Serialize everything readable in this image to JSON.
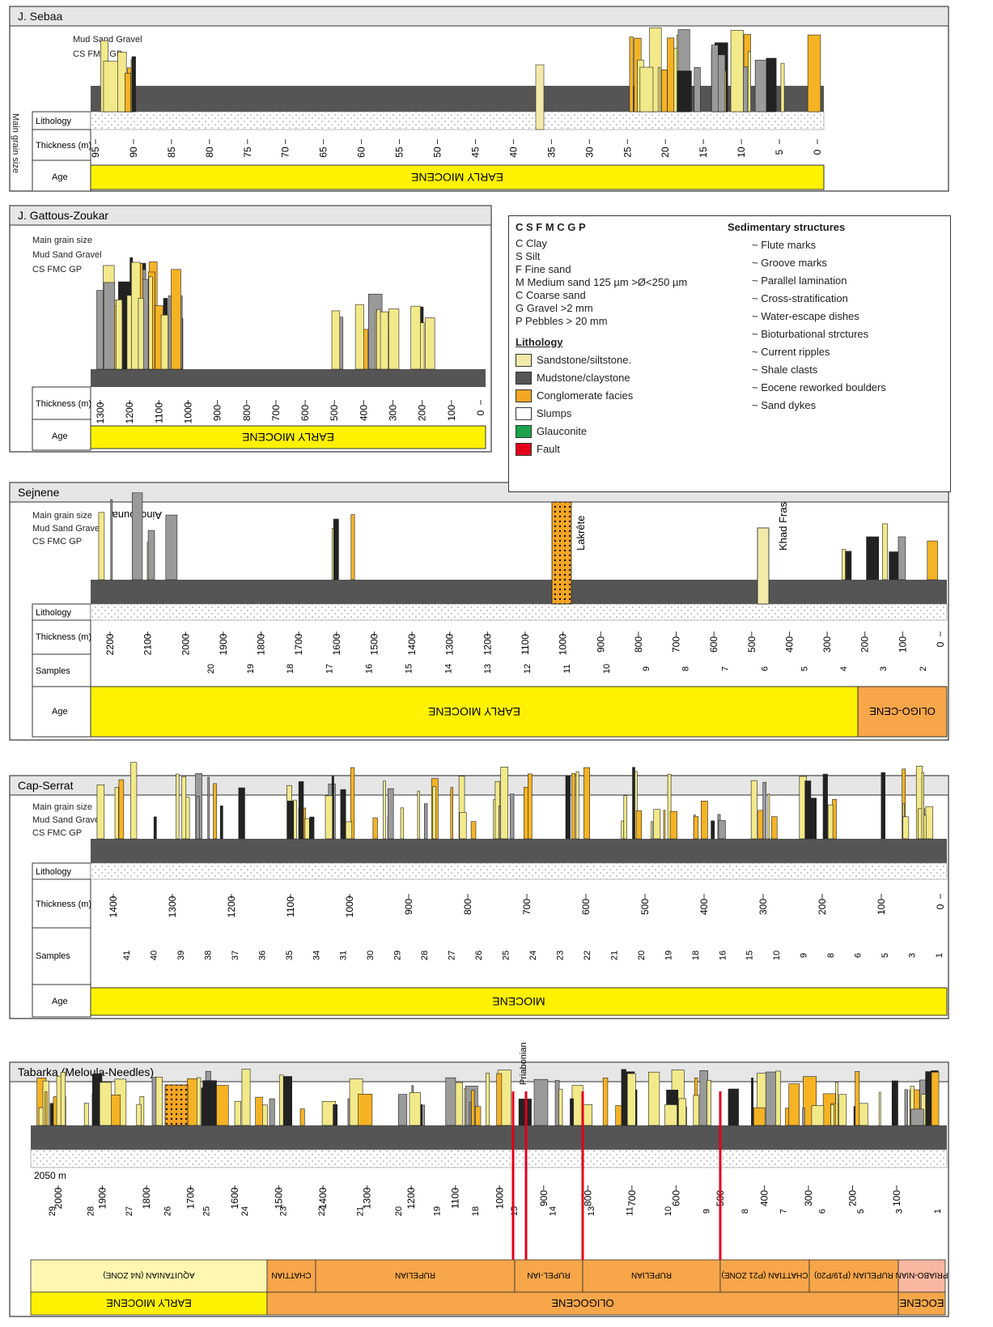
{
  "columns": {
    "sebaa": {
      "title": "J. Sebaa",
      "age_header": "Age",
      "thickness_header": "Thickness (m)",
      "lithology_header": "Lithology",
      "grain_header": "Main grain size",
      "grain_sub": "Mud Sand Gravel",
      "grain_codes": "CS FMC GP",
      "age_band": "EARLY MIOCENE",
      "ticks": [
        "95",
        "90",
        "85",
        "80",
        "75",
        "70",
        "65",
        "60",
        "55",
        "50",
        "45",
        "40",
        "35",
        "30",
        "25",
        "20",
        "15",
        "10",
        "5",
        "0"
      ]
    },
    "gattous": {
      "title": "J. Gattous-Zoukar",
      "age_header": "Age",
      "thickness_header": "Thickness (m)",
      "grain_header": "Main grain size",
      "grain_sub": "Mud Sand Gravel",
      "grain_codes": "CS FMC GP",
      "age_band": "EARLY MIOCENE",
      "ticks": [
        "1300",
        "1200",
        "1100",
        "1000",
        "900",
        "800",
        "700",
        "600",
        "500",
        "400",
        "300",
        "200",
        "100",
        "0"
      ]
    },
    "sejnene": {
      "title": "Sejnene",
      "age_header": "Age",
      "samples_header": "Samples",
      "thickness_header": "Thickness (m)",
      "lithology_header": "Lithology",
      "grain_header": "Main grain size",
      "grain_sub": "Mud Sand Gravel",
      "grain_codes": "CS FMC GP",
      "age_band": "EARLY MIOCENE",
      "age_band2": "OLIGO-CENE",
      "labels": {
        "ainchouna": "Ainchouna",
        "lakrete": "Lakrête",
        "khad": "Khad Fras"
      },
      "ticks": [
        "2200",
        "2100",
        "2000",
        "1900",
        "1800",
        "1700",
        "1600",
        "1500",
        "1400",
        "1300",
        "1200",
        "1100",
        "1000",
        "900",
        "800",
        "700",
        "600",
        "500",
        "400",
        "300",
        "200",
        "100",
        "0"
      ],
      "samples": [
        "20",
        "19",
        "18",
        "17",
        "16",
        "15",
        "14",
        "13",
        "12",
        "11",
        "10",
        "9",
        "8",
        "7",
        "6",
        "5",
        "4",
        "3",
        "2"
      ]
    },
    "capserrat": {
      "title": "Cap-Serrat",
      "age_header": "Age",
      "samples_header": "Samples",
      "thickness_header": "Thickness (m)",
      "lithology_header": "Lithology",
      "grain_header": "Main grain size",
      "grain_sub": "Mud Sand Gravel",
      "grain_codes": "CS FMC GP",
      "age_band": "MIOCENE",
      "ticks": [
        "1400",
        "1300",
        "1200",
        "1100",
        "1000",
        "900",
        "800",
        "700",
        "600",
        "500",
        "400",
        "300",
        "200",
        "100",
        "0"
      ],
      "samples": [
        "41",
        "40",
        "39",
        "38",
        "37",
        "36",
        "35",
        "34",
        "31",
        "30",
        "29",
        "28",
        "27",
        "26",
        "25",
        "24",
        "23",
        "22",
        "21",
        "20",
        "19",
        "18",
        "16",
        "15",
        "10",
        "9",
        "8",
        "6",
        "5",
        "3",
        "1"
      ]
    },
    "tabarka": {
      "title": "Tabarka (Meloula-Needles)",
      "top_tick": "2050 m",
      "ticks": [
        "2000",
        "1900",
        "1800",
        "1700",
        "1600",
        "1500",
        "1400",
        "1300",
        "1200",
        "1100",
        "1000",
        "900",
        "800",
        "700",
        "600",
        "500",
        "400",
        "300",
        "200",
        "100"
      ],
      "samples": [
        "29",
        "28",
        "27",
        "26",
        "25",
        "24",
        "23",
        "22",
        "21",
        "20",
        "19",
        "18",
        "15",
        "14",
        "13",
        "11",
        "10",
        "9",
        "8",
        "7",
        "6",
        "5",
        "3",
        "1"
      ],
      "priabonian_label": "Priabonian",
      "stages": [
        "AQUITANIAN (N4 ZONE)",
        "CHATTIAN",
        "RUPELIAN",
        "RUPEL-IAN",
        "RUPELIAN",
        "CHATTIAN (P21 ZONE)",
        "RUPELIAN (P19/P20)",
        "PRIABO-NIAN"
      ],
      "epochs": [
        "EARLY MIOCENE",
        "OLIGOCENE",
        "EOCENE"
      ]
    }
  },
  "legend": {
    "grain_codes": [
      {
        "code": "C",
        "text": "Clay"
      },
      {
        "code": "S",
        "text": "Silt"
      },
      {
        "code": "F",
        "text": "Fine sand"
      },
      {
        "code": "M",
        "text": "Medium sand 125 µm >Ø<250 µm"
      },
      {
        "code": "C",
        "text": "Coarse sand"
      },
      {
        "code": "G",
        "text": "Gravel >2 mm"
      },
      {
        "code": "P",
        "text": "Pebbles > 20 mm"
      }
    ],
    "lithology_title": "Lithology",
    "lithology": [
      "Sandstone/siltstone.",
      "Mudstone/claystone",
      "Conglomerate facies",
      "Slumps",
      "Glauconite",
      "Fault"
    ],
    "structures_title": "Sedimentary structures",
    "structures": [
      "Flute marks",
      "Groove marks",
      "Parallel lamination",
      "Cross-stratification",
      "Water-escape dishes",
      "Bioturbational strctures",
      "Current ripples",
      "Shale clasts",
      "Eocene reworked boulders",
      "Sand dykes"
    ]
  },
  "colors": {
    "sand": "#f2eaa8",
    "yellow": "#fff200",
    "orange": "#f7a64a",
    "grey": "#555555",
    "mud": "#444",
    "conglomerate": "#e8a020",
    "fault": "#e3001b"
  }
}
